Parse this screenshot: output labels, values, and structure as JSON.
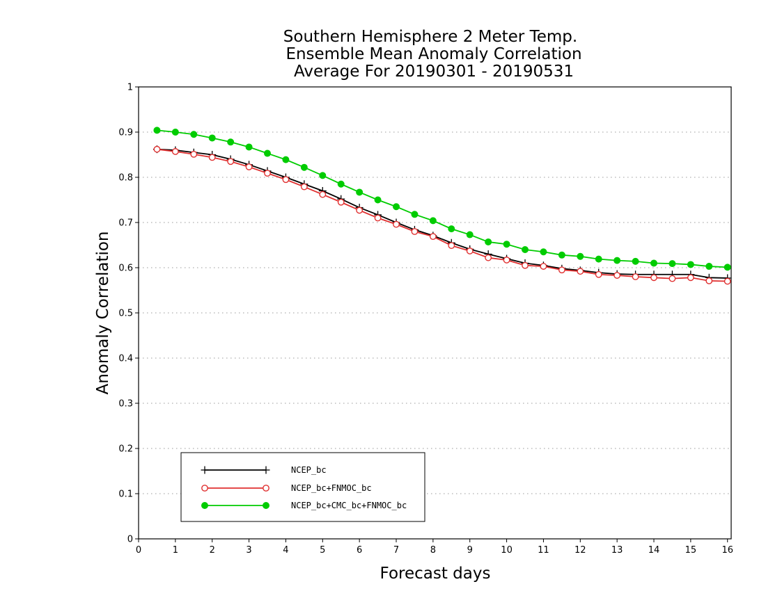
{
  "chart_data": {
    "type": "line",
    "title_lines": [
      "Southern Hemisphere 2 Meter Temp.",
      "Ensemble Mean Anomaly Correlation",
      "Average For 20190301 - 20190531"
    ],
    "xlabel": "Forecast days",
    "ylabel": "Anomaly Correlation",
    "xlim": [
      0,
      16.1
    ],
    "ylim": [
      0,
      1
    ],
    "xticks": [
      "0",
      "1",
      "2",
      "3",
      "4",
      "5",
      "6",
      "7",
      "8",
      "9",
      "10",
      "11",
      "12",
      "13",
      "14",
      "15",
      "16"
    ],
    "yticks": [
      "0",
      "0.1",
      "0.2",
      "0.3",
      "0.4",
      "0.5",
      "0.6",
      "0.7",
      "0.8",
      "0.9",
      "1"
    ],
    "grid": "horizontal dotted",
    "legend_position": "bottom-left",
    "x": [
      0.5,
      1,
      1.5,
      2,
      2.5,
      3,
      3.5,
      4,
      4.5,
      5,
      5.5,
      6,
      6.5,
      7,
      7.5,
      8,
      8.5,
      9,
      9.5,
      10,
      10.5,
      11,
      11.5,
      12,
      12.5,
      13,
      13.5,
      14,
      14.5,
      15,
      15.5,
      16
    ],
    "series": [
      {
        "name": "NCEP_bc",
        "color": "#000000",
        "marker": "plus",
        "values": [
          0.862,
          0.86,
          0.855,
          0.85,
          0.84,
          0.828,
          0.814,
          0.8,
          0.785,
          0.77,
          0.752,
          0.733,
          0.717,
          0.7,
          0.684,
          0.671,
          0.655,
          0.641,
          0.63,
          0.62,
          0.61,
          0.605,
          0.598,
          0.594,
          0.589,
          0.586,
          0.585,
          0.585,
          0.585,
          0.585,
          0.578,
          0.577
        ]
      },
      {
        "name": "NCEP_bc+FNMOC_bc",
        "color": "#e03030",
        "marker": "open-circle",
        "values": [
          0.862,
          0.857,
          0.851,
          0.844,
          0.835,
          0.823,
          0.809,
          0.795,
          0.779,
          0.762,
          0.745,
          0.727,
          0.71,
          0.696,
          0.68,
          0.669,
          0.649,
          0.637,
          0.622,
          0.617,
          0.605,
          0.603,
          0.595,
          0.592,
          0.585,
          0.583,
          0.58,
          0.578,
          0.576,
          0.578,
          0.571,
          0.57
        ]
      },
      {
        "name": "NCEP_bc+CMC_bc+FNMOC_bc",
        "color": "#00cc00",
        "marker": "filled-circle",
        "values": [
          0.904,
          0.9,
          0.895,
          0.887,
          0.878,
          0.867,
          0.853,
          0.839,
          0.822,
          0.804,
          0.785,
          0.767,
          0.75,
          0.735,
          0.718,
          0.704,
          0.686,
          0.673,
          0.657,
          0.652,
          0.64,
          0.635,
          0.628,
          0.625,
          0.619,
          0.616,
          0.614,
          0.61,
          0.609,
          0.607,
          0.603,
          0.601
        ]
      }
    ]
  }
}
